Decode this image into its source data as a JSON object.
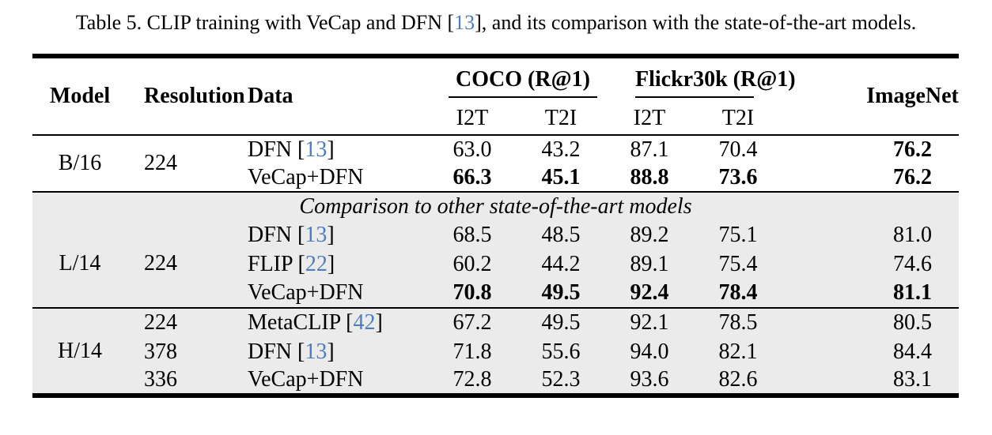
{
  "colors": {
    "citation_blue": "#4a7ec1",
    "section_gray": "#ebebeb",
    "rule_black": "#000000",
    "page_background": "#ffffff"
  },
  "caption": {
    "prefix": "Table 5. CLIP training with VeCap and DFN [",
    "cite": "13",
    "suffix": "], and its comparison with the state-of-the-art models."
  },
  "table": {
    "header": {
      "model": "Model",
      "resolution": "Resolution",
      "data": "Data",
      "coco_group": "COCO (R@1)",
      "flickr_group": "Flickr30k (R@1)",
      "imagenet": "ImageNet",
      "subheaders": [
        "I2T",
        "T2I",
        "I2T",
        "T2I"
      ]
    },
    "divider_label": "Comparison to other state-of-the-art models",
    "b16": {
      "model": "B/16",
      "resolution": "224",
      "rows": [
        {
          "data_prefix": "DFN [",
          "cite": "13",
          "data_suffix": "]",
          "coco_i2t": "63.0",
          "coco_t2i": "43.2",
          "flickr_i2t": "87.1",
          "flickr_t2i": "70.4",
          "imagenet": "76.2"
        },
        {
          "data_prefix": "VeCap+DFN",
          "coco_i2t": "66.3",
          "coco_t2i": "45.1",
          "flickr_i2t": "88.8",
          "flickr_t2i": "73.6",
          "imagenet": "76.2"
        }
      ]
    },
    "l14": {
      "model": "L/14",
      "resolution": "224",
      "rows": [
        {
          "data_prefix": "DFN [",
          "cite": "13",
          "data_suffix": "]",
          "coco_i2t": "68.5",
          "coco_t2i": "48.5",
          "flickr_i2t": "89.2",
          "flickr_t2i": "75.1",
          "imagenet": "81.0"
        },
        {
          "data_prefix": "FLIP [",
          "cite": "22",
          "data_suffix": "]",
          "coco_i2t": "60.2",
          "coco_t2i": "44.2",
          "flickr_i2t": "89.1",
          "flickr_t2i": "75.4",
          "imagenet": "74.6"
        },
        {
          "data_prefix": "VeCap+DFN",
          "coco_i2t": "70.8",
          "coco_t2i": "49.5",
          "flickr_i2t": "92.4",
          "flickr_t2i": "78.4",
          "imagenet": "81.1"
        }
      ]
    },
    "h14": {
      "model": "H/14",
      "rows": [
        {
          "resolution": "224",
          "data_prefix": "MetaCLIP [",
          "cite": "42",
          "data_suffix": "]",
          "coco_i2t": "67.2",
          "coco_t2i": "49.5",
          "flickr_i2t": "92.1",
          "flickr_t2i": "78.5",
          "imagenet": "80.5"
        },
        {
          "resolution": "378",
          "data_prefix": "DFN [",
          "cite": "13",
          "data_suffix": "]",
          "coco_i2t": "71.8",
          "coco_t2i": "55.6",
          "flickr_i2t": "94.0",
          "flickr_t2i": "82.1",
          "imagenet": "84.4"
        },
        {
          "resolution": "336",
          "data_prefix": "VeCap+DFN",
          "coco_i2t": "72.8",
          "coco_t2i": "52.3",
          "flickr_i2t": "93.6",
          "flickr_t2i": "82.6",
          "imagenet": "83.1"
        }
      ]
    }
  }
}
